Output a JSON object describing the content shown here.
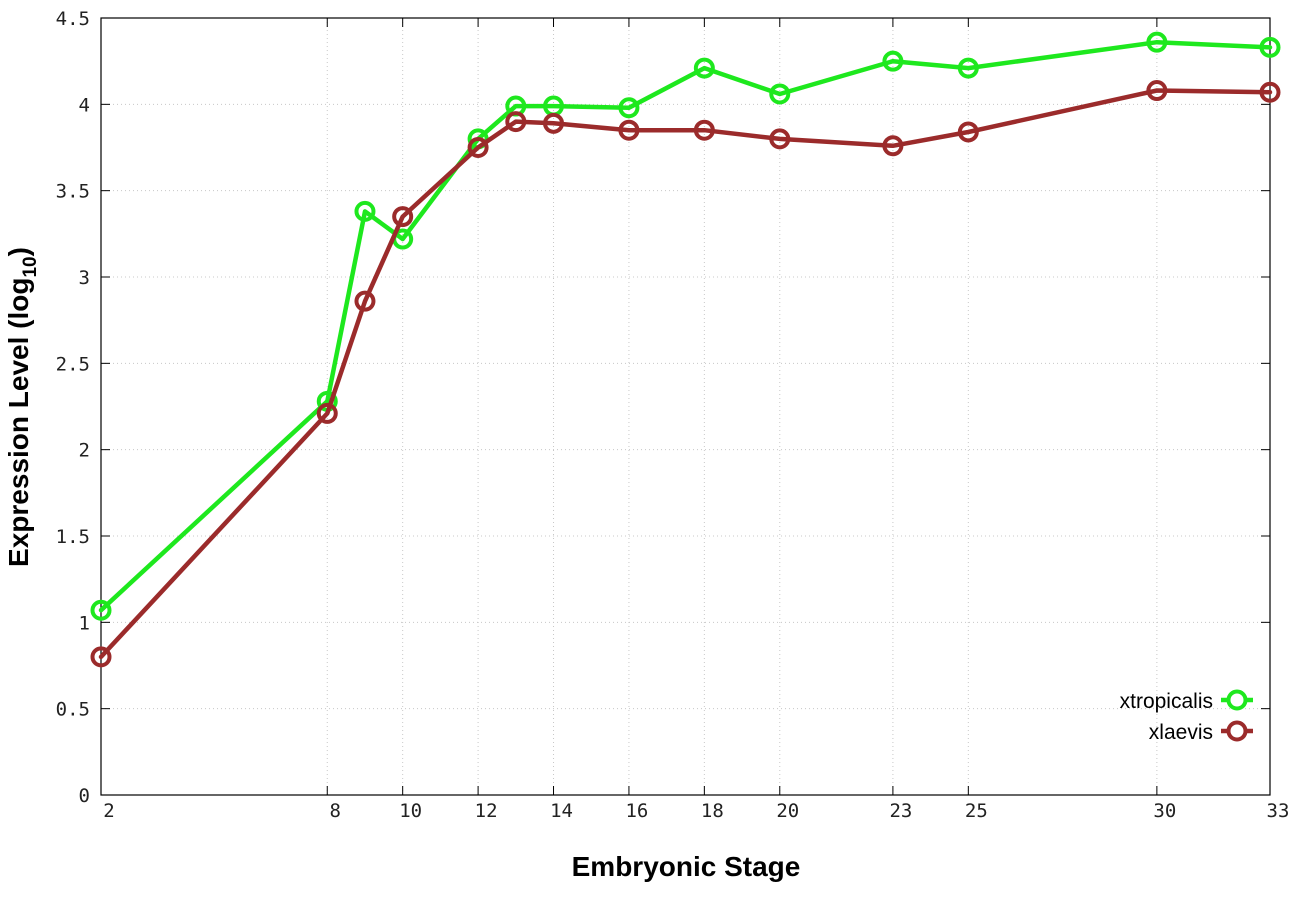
{
  "chart_data": {
    "type": "line",
    "title": "",
    "xlabel": "Embryonic Stage",
    "ylabel": {
      "main": "Expression Level (log",
      "sub": "10",
      "close": ")"
    },
    "xlim": [
      2,
      33
    ],
    "ylim": [
      0,
      4.5
    ],
    "x_ticks": [
      2,
      8,
      10,
      12,
      14,
      16,
      18,
      20,
      23,
      25,
      30,
      33
    ],
    "y_ticks": [
      0,
      0.5,
      1,
      1.5,
      2,
      2.5,
      3,
      3.5,
      4,
      4.5
    ],
    "y_tick_labels": [
      "0",
      "0.5",
      "1",
      "1.5",
      "2",
      "2.5",
      "3",
      "3.5",
      "4",
      "4.5"
    ],
    "grid": true,
    "legend_position": "bottom-right",
    "series": [
      {
        "name": "xtropicalis",
        "color": "#1ee81e",
        "x": [
          2,
          8,
          9,
          10,
          12,
          13,
          14,
          16,
          18,
          20,
          23,
          25,
          30,
          33
        ],
        "values": [
          1.07,
          2.28,
          3.38,
          3.22,
          3.8,
          3.99,
          3.99,
          3.98,
          4.21,
          4.06,
          4.25,
          4.21,
          4.36,
          4.33
        ]
      },
      {
        "name": "xlaevis",
        "color": "#9b2b2b",
        "x": [
          2,
          8,
          9,
          10,
          12,
          13,
          14,
          16,
          18,
          20,
          23,
          25,
          30,
          33
        ],
        "values": [
          0.8,
          2.21,
          2.86,
          3.35,
          3.75,
          3.9,
          3.89,
          3.85,
          3.85,
          3.8,
          3.76,
          3.84,
          4.08,
          4.07
        ]
      }
    ]
  }
}
